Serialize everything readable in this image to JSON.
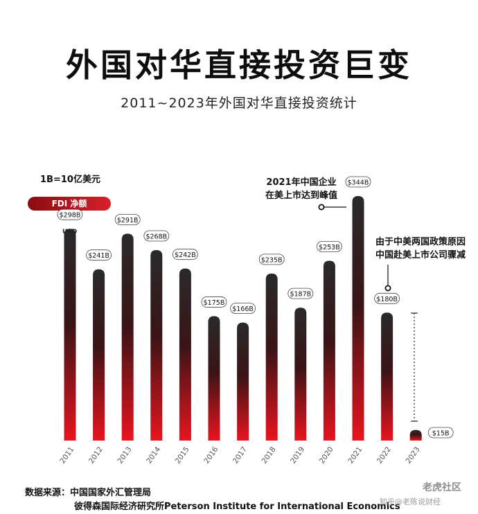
{
  "header": {
    "title": "外国对华直接投资巨变",
    "subtitle": "2011~2023年外国对华直接投资统计"
  },
  "unit_note": "1B=10亿美元",
  "badge": "FDI 净额",
  "usd_label": "USD",
  "annotations": {
    "peak_line1": "2021年中国企业",
    "peak_line2": "在美上市达到峰值",
    "drop_line1": "由于中美两国政策原因",
    "drop_line2": "中国赴美上市公司骤减"
  },
  "source": {
    "line1": "数据来源：中国国家外汇管理局",
    "line2": "彼得森国际经济研究所Peterson Institute for International  Economics"
  },
  "watermark": {
    "corner": "老虎社区",
    "bottom_right": "知乎@老陈说财经"
  },
  "colors": {
    "bar_top": "#2a2a2a",
    "bar_bottom": "#e8141e",
    "accent_red": "#d8202a"
  },
  "chart_data": {
    "type": "bar",
    "title": "2011~2023年外国对华直接投资统计",
    "xlabel": "",
    "ylabel": "",
    "unit": "B USD",
    "categories": [
      "2011",
      "2012",
      "2013",
      "2014",
      "2015",
      "2016",
      "2017",
      "2018",
      "2019",
      "2020",
      "2021",
      "2022",
      "2023"
    ],
    "values": [
      298,
      241,
      291,
      268,
      242,
      175,
      166,
      235,
      187,
      253,
      344,
      180,
      15
    ],
    "data_labels": [
      "$298B",
      "$241B",
      "$291B",
      "$268B",
      "$242B",
      "$175B",
      "$166B",
      "$235B",
      "$187B",
      "$253B",
      "$344B",
      "$180B",
      "$15B"
    ],
    "ylim": [
      0,
      344
    ],
    "grid": false,
    "legend": "none"
  }
}
